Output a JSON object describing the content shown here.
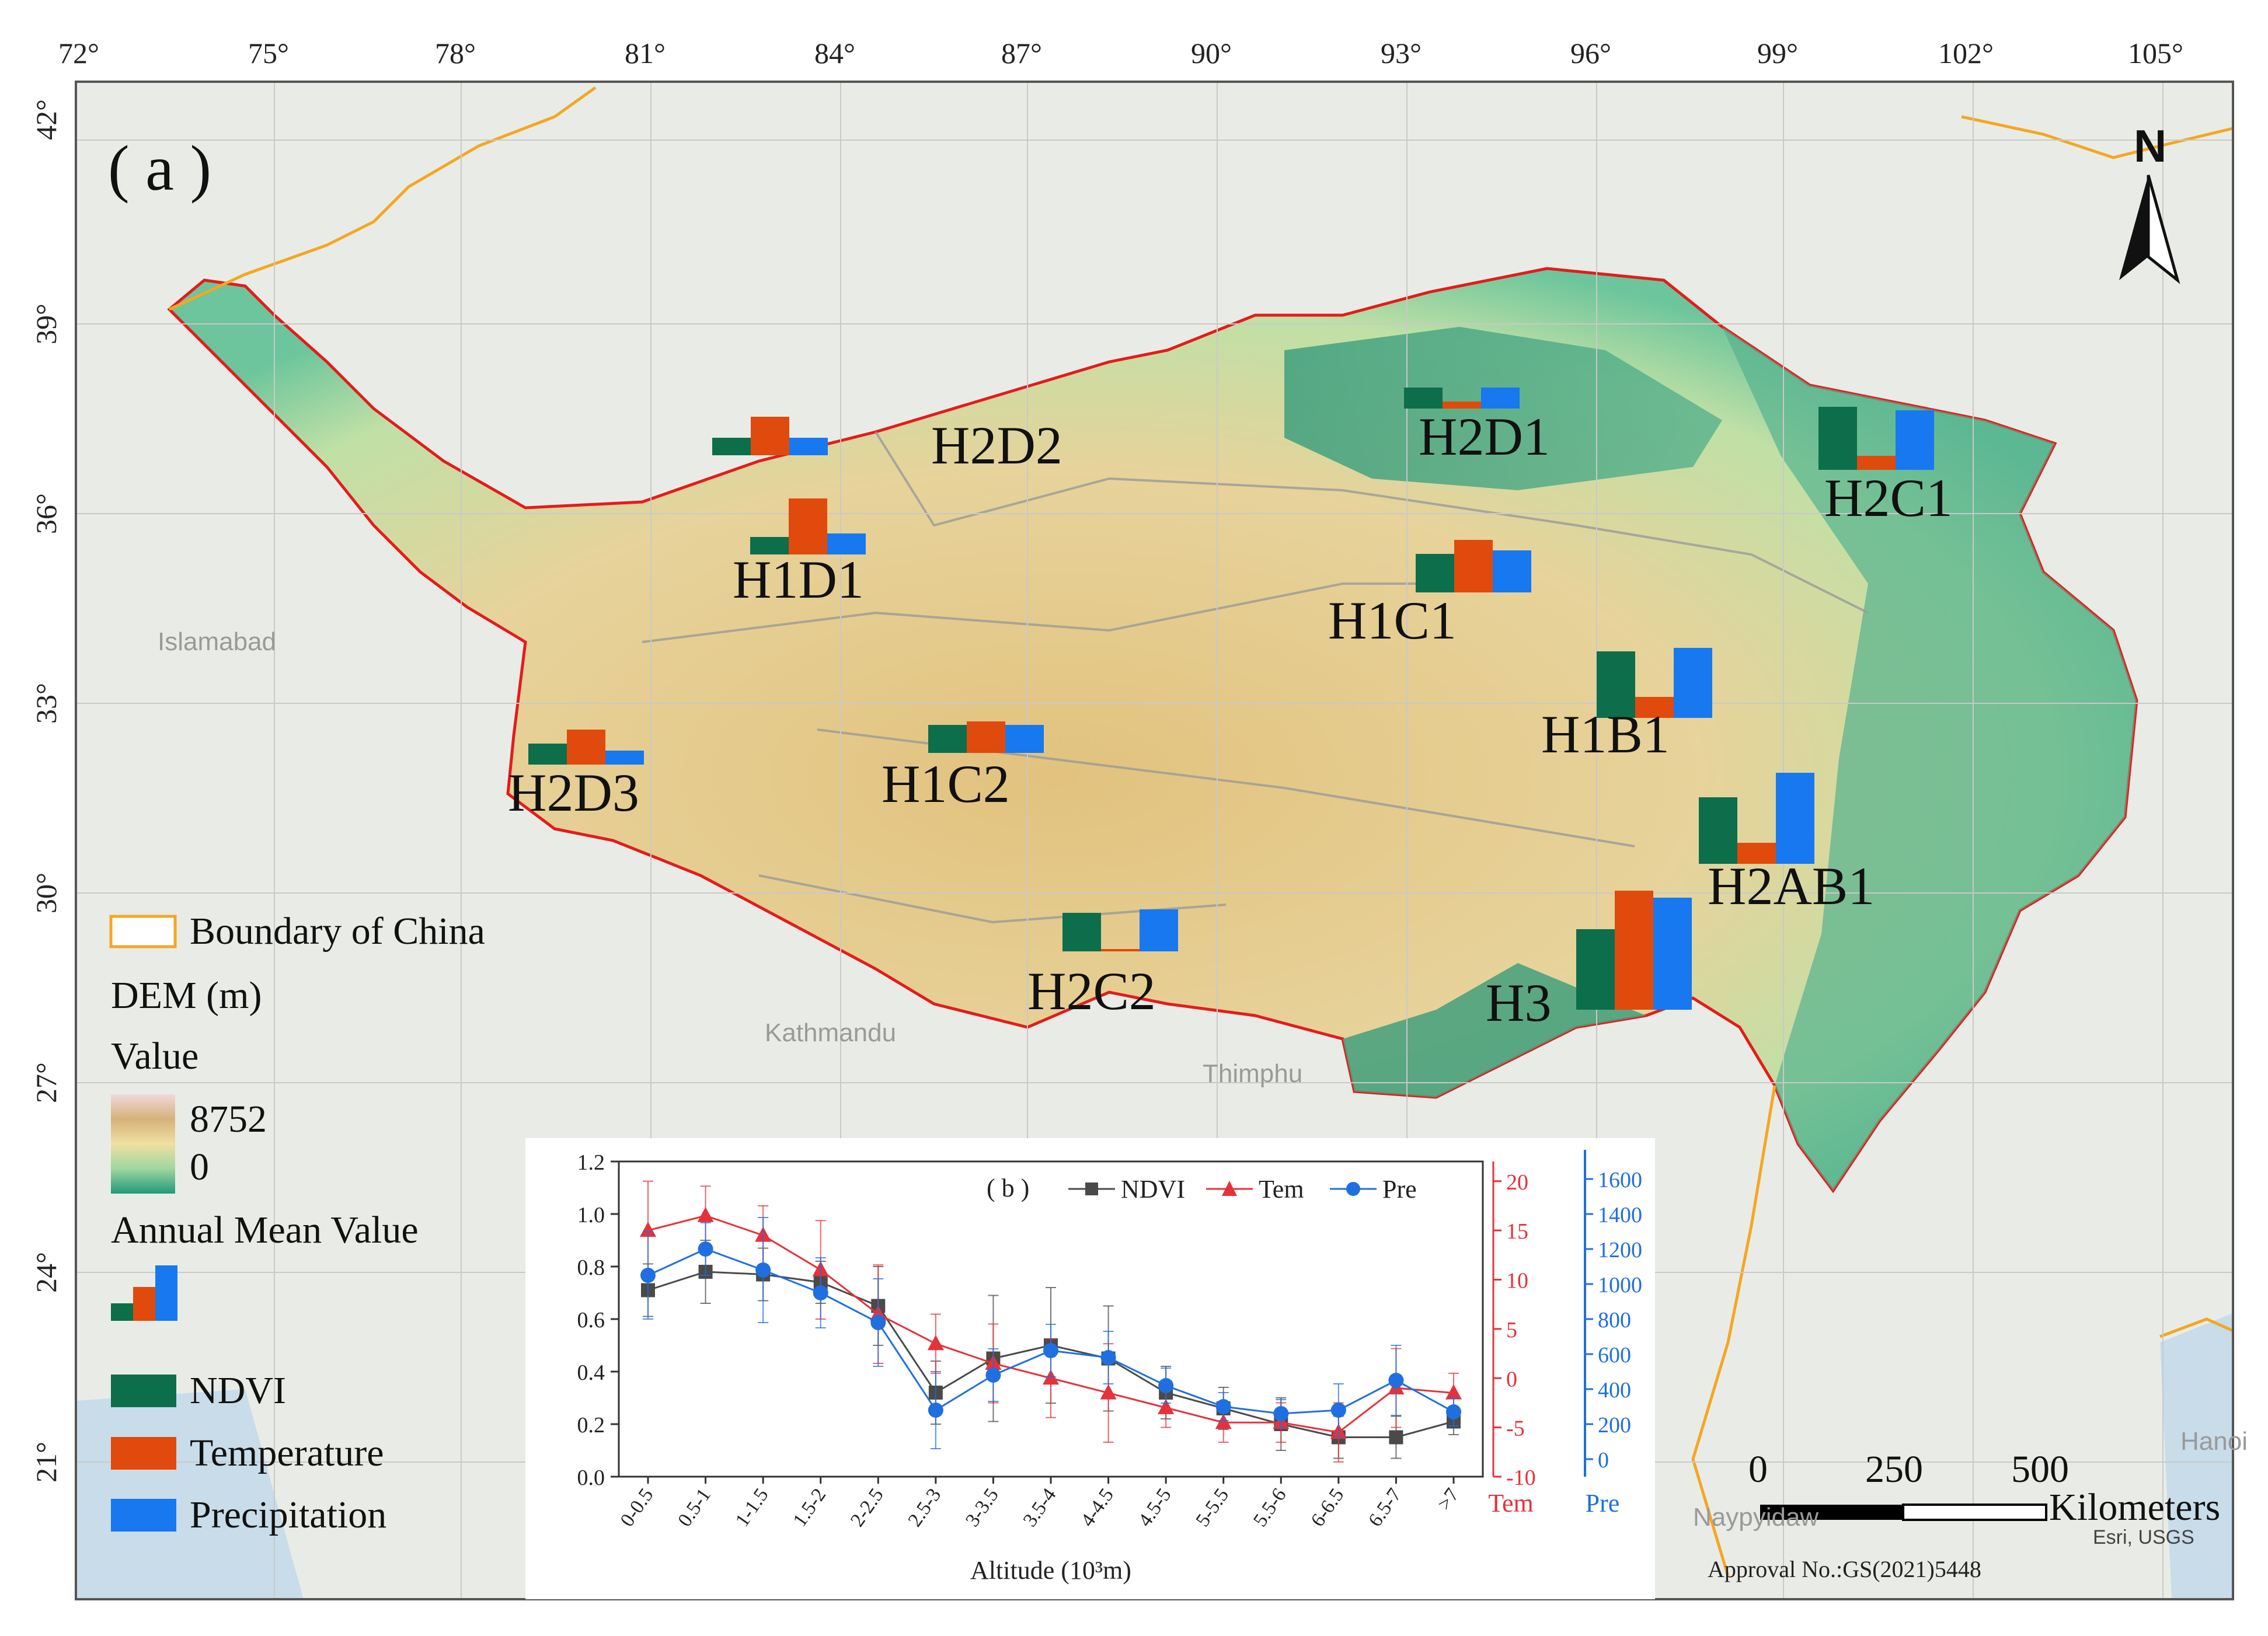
{
  "panel_label": "( a )",
  "longitude_labels": [
    "72°",
    "75°",
    "78°",
    "81°",
    "84°",
    "87°",
    "90°",
    "93°",
    "96°",
    "99°",
    "102°",
    "105°"
  ],
  "latitude_labels": [
    "42°",
    "39°",
    "36°",
    "33°",
    "30°",
    "27°",
    "24°",
    "21°"
  ],
  "regions": [
    {
      "name": "H2D2",
      "ndvi": 0.25,
      "tem": 0.55,
      "pre": 0.25
    },
    {
      "name": "H2D1",
      "ndvi": 0.3,
      "tem": 0.1,
      "pre": 0.3
    },
    {
      "name": "H2C1",
      "ndvi": 0.9,
      "tem": 0.2,
      "pre": 0.85
    },
    {
      "name": "H1D1",
      "ndvi": 0.25,
      "tem": 0.8,
      "pre": 0.3
    },
    {
      "name": "H1C1",
      "ndvi": 0.55,
      "tem": 0.75,
      "pre": 0.6
    },
    {
      "name": "H1B1",
      "ndvi": 0.95,
      "tem": 0.3,
      "pre": 1.0
    },
    {
      "name": "H2D3",
      "ndvi": 0.3,
      "tem": 0.5,
      "pre": 0.2
    },
    {
      "name": "H1C2",
      "ndvi": 0.4,
      "tem": 0.45,
      "pre": 0.4
    },
    {
      "name": "H2AB1",
      "ndvi": 0.95,
      "tem": 0.3,
      "pre": 1.3
    },
    {
      "name": "H2C2",
      "ndvi": 0.55,
      "tem": 0.0,
      "pre": 0.6
    },
    {
      "name": "H3",
      "ndvi": 1.15,
      "tem": 1.7,
      "pre": 1.6
    }
  ],
  "place_names": [
    "Islamabad",
    "Kathmandu",
    "Thimphu",
    "Hanoi",
    "Naypyidaw"
  ],
  "legend": {
    "boundary": "Boundary of China",
    "dem_title": "DEM (m)",
    "value_title": "Value",
    "dem_max": "8752",
    "dem_min": "0",
    "annual_title": "Annual Mean Value",
    "ndvi": "NDVI",
    "temperature": "Temperature",
    "precipitation": "Precipitation"
  },
  "north": "N",
  "scale": {
    "labels": [
      "0",
      "250",
      "500"
    ],
    "unit": "Kilometers"
  },
  "credit": "Esri, USGS",
  "approval": "Approval No.:GS(2021)5448",
  "colors": {
    "ndvi": "#0d6e4b",
    "temperature": "#e04a0c",
    "precipitation": "#1778f0",
    "boundary_china": "#f5a623",
    "plateau_outline": "#e31c1c",
    "tem_axis": "#e5323a",
    "pre_axis": "#1f6fe0"
  },
  "chart_data": {
    "type": "line",
    "panel": "( b )",
    "xlabel": "Altitude (10³m)",
    "categories": [
      "0-0.5",
      "0.5-1",
      "1-1.5",
      "1.5-2",
      "2-2.5",
      "2.5-3",
      "3-3.5",
      "3.5-4",
      "4-4.5",
      "4.5-5",
      "5-5.5",
      "5.5-6",
      "6-6.5",
      "6.5-7",
      ">7"
    ],
    "left_axis": {
      "ticks": [
        "0.0",
        "0.2",
        "0.4",
        "0.6",
        "0.8",
        "1.0",
        "1.2"
      ],
      "ylim": [
        0,
        1.2
      ]
    },
    "tem_axis": {
      "label": "Tem",
      "ticks": [
        "-10",
        "-5",
        "0",
        "5",
        "10",
        "15",
        "20"
      ],
      "ylim": [
        -10,
        22
      ]
    },
    "pre_axis": {
      "label": "Pre",
      "ticks": [
        "0",
        "200",
        "400",
        "600",
        "800",
        "1000",
        "1200",
        "1400",
        "1600"
      ],
      "ylim": [
        -100,
        1700
      ]
    },
    "series": [
      {
        "name": "NDVI",
        "axis": "left",
        "marker": "square",
        "color": "#4a4a4a",
        "values": [
          0.71,
          0.78,
          0.77,
          0.74,
          0.65,
          0.32,
          0.45,
          0.5,
          0.45,
          0.32,
          0.26,
          0.2,
          0.15,
          0.15,
          0.21
        ],
        "err": [
          0.1,
          0.12,
          0.1,
          0.08,
          0.15,
          0.12,
          0.24,
          0.22,
          0.2,
          0.1,
          0.08,
          0.1,
          0.08,
          0.08,
          0.05
        ]
      },
      {
        "name": "Tem",
        "axis": "tem",
        "marker": "triangle",
        "color": "#e5323a",
        "values": [
          15,
          16.5,
          14.5,
          11,
          6.5,
          3.5,
          1.5,
          0,
          -1.5,
          -3,
          -4.5,
          -4.5,
          -5.5,
          -1,
          -1.5
        ],
        "err": [
          5,
          3,
          3,
          5,
          5,
          3,
          4,
          4,
          5,
          2,
          2,
          2,
          3,
          4,
          2
        ]
      },
      {
        "name": "Pre",
        "axis": "pre",
        "marker": "circle",
        "color": "#1f6fe0",
        "values": [
          1050,
          1200,
          1080,
          950,
          780,
          280,
          480,
          620,
          580,
          420,
          300,
          260,
          280,
          450,
          270
        ],
        "err": [
          250,
          150,
          300,
          200,
          250,
          220,
          150,
          150,
          150,
          100,
          80,
          80,
          150,
          200,
          80
        ]
      }
    ]
  }
}
